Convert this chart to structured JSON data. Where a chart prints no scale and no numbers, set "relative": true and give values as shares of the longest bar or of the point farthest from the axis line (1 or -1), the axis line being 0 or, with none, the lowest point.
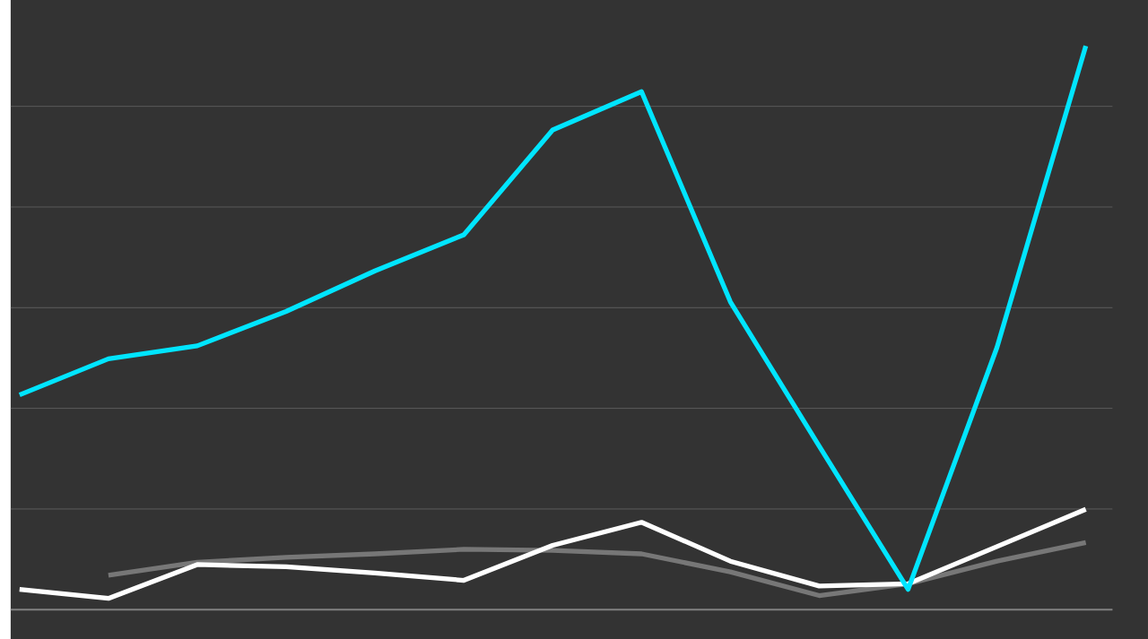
{
  "chart_data": {
    "type": "line",
    "relative": true,
    "grid": "y",
    "line_style": "solid",
    "marker": "none",
    "categories": [
      null,
      null,
      null,
      null,
      null,
      null,
      null,
      null,
      null,
      null,
      null,
      null,
      null
    ],
    "series": [
      {
        "color": "#777777",
        "values": [
          null,
          0.061,
          0.084,
          0.093,
          0.099,
          0.107,
          0.105,
          0.099,
          0.067,
          0.025,
          0.046,
          0.086,
          0.119
        ]
      },
      {
        "color": "#ffffff",
        "values": [
          0.036,
          0.02,
          0.08,
          0.076,
          0.065,
          0.052,
          0.114,
          0.155,
          0.086,
          0.042,
          0.046,
          0.112,
          0.178
        ]
      },
      {
        "color": "#00e5ff",
        "values": [
          0.381,
          0.445,
          0.468,
          0.529,
          0.601,
          0.665,
          0.851,
          0.919,
          0.546,
          0.29,
          0.036,
          0.465,
          1.0
        ]
      }
    ]
  }
}
